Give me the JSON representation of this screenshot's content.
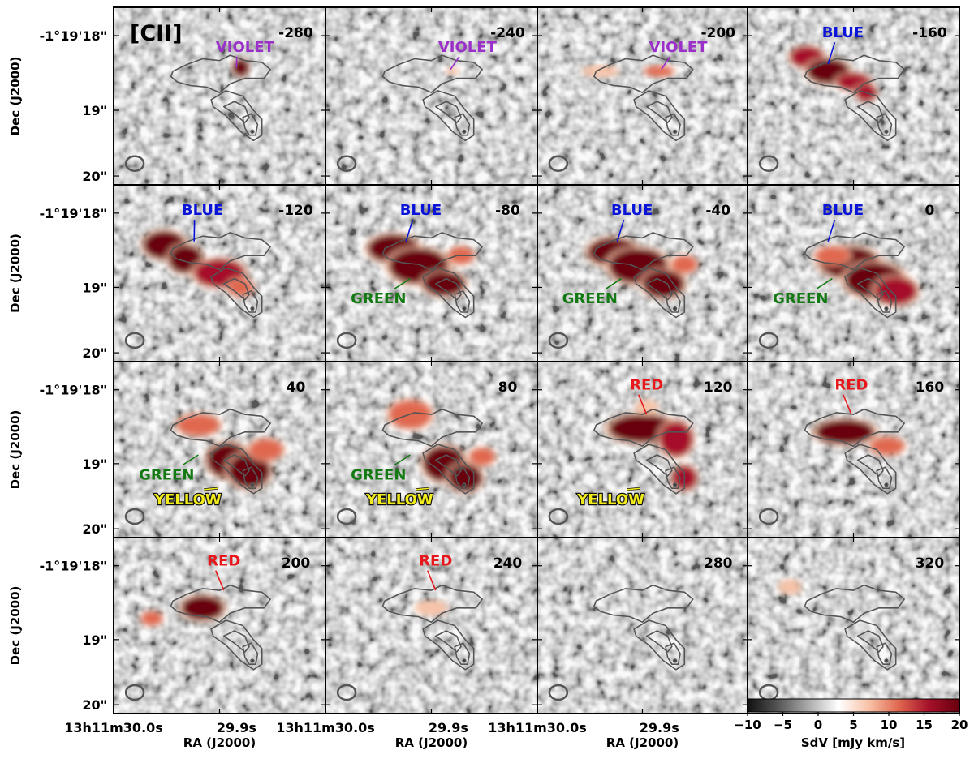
{
  "chart_data": {
    "type": "heatmap",
    "title": "[CII]",
    "ylabel": "Dec (J2000)",
    "xlabel": "RA (J2000)",
    "ytick_labels": [
      "-1°19'18\"",
      "19\"",
      "20\""
    ],
    "xtick_labels": [
      "13h11m30.0s",
      "29.9s"
    ],
    "colorbar": {
      "label": "SdV [mJy km/s]",
      "range": [
        -10,
        20
      ],
      "ticks": [
        "−10",
        "−5",
        "0",
        "5",
        "10",
        "15",
        "20"
      ],
      "colors": [
        "#111111",
        "#555555",
        "#aaaaaa",
        "#ffffff",
        "#f7c3a8",
        "#e0674f",
        "#a5102a",
        "#67000d"
      ]
    },
    "colors": {
      "VIOLET": "#9a2fc9",
      "BLUE": "#0a14d8",
      "GREEN": "#137a13",
      "YELLOW": "#f2ec1a",
      "RED": "#e8171b",
      "contour": "#555555"
    },
    "panels": [
      {
        "velocity": "-280",
        "labels": [
          {
            "text": "VIOLET",
            "color": "VIOLET"
          }
        ]
      },
      {
        "velocity": "-240",
        "labels": [
          {
            "text": "VIOLET",
            "color": "VIOLET"
          }
        ]
      },
      {
        "velocity": "-200",
        "labels": [
          {
            "text": "VIOLET",
            "color": "VIOLET"
          }
        ]
      },
      {
        "velocity": "-160",
        "labels": [
          {
            "text": "BLUE",
            "color": "BLUE"
          }
        ]
      },
      {
        "velocity": "-120",
        "labels": [
          {
            "text": "BLUE",
            "color": "BLUE"
          }
        ]
      },
      {
        "velocity": "-80",
        "labels": [
          {
            "text": "BLUE",
            "color": "BLUE"
          },
          {
            "text": "GREEN",
            "color": "GREEN"
          }
        ]
      },
      {
        "velocity": "-40",
        "labels": [
          {
            "text": "BLUE",
            "color": "BLUE"
          },
          {
            "text": "GREEN",
            "color": "GREEN"
          }
        ]
      },
      {
        "velocity": "0",
        "labels": [
          {
            "text": "BLUE",
            "color": "BLUE"
          },
          {
            "text": "GREEN",
            "color": "GREEN"
          }
        ]
      },
      {
        "velocity": "40",
        "labels": [
          {
            "text": "GREEN",
            "color": "GREEN"
          },
          {
            "text": "YELLOW",
            "color": "YELLOW"
          }
        ]
      },
      {
        "velocity": "80",
        "labels": [
          {
            "text": "GREEN",
            "color": "GREEN"
          },
          {
            "text": "YELLOW",
            "color": "YELLOW"
          }
        ]
      },
      {
        "velocity": "120",
        "labels": [
          {
            "text": "RED",
            "color": "RED"
          },
          {
            "text": "YELLOW",
            "color": "YELLOW"
          }
        ]
      },
      {
        "velocity": "160",
        "labels": [
          {
            "text": "RED",
            "color": "RED"
          }
        ]
      },
      {
        "velocity": "200",
        "labels": [
          {
            "text": "RED",
            "color": "RED"
          }
        ]
      },
      {
        "velocity": "240",
        "labels": [
          {
            "text": "RED",
            "color": "RED"
          }
        ]
      },
      {
        "velocity": "280",
        "labels": []
      },
      {
        "velocity": "320",
        "labels": []
      }
    ]
  }
}
